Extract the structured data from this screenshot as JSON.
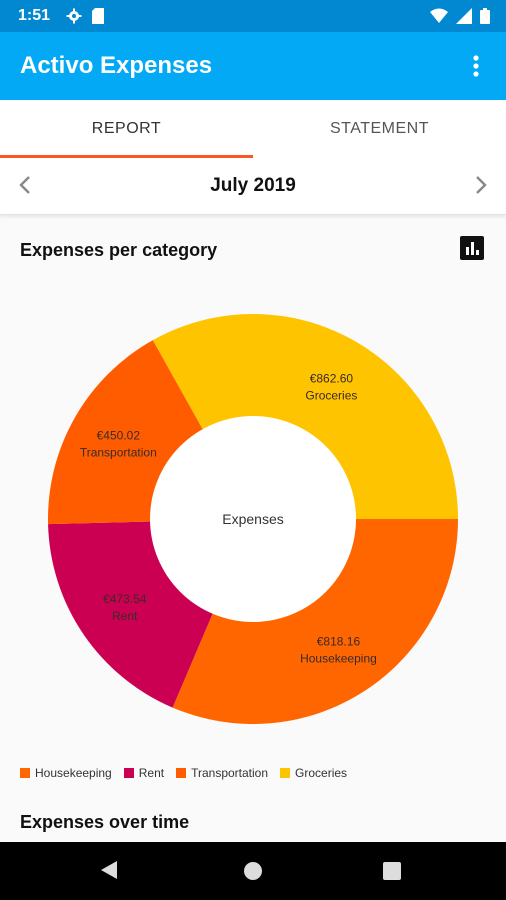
{
  "status_bar": {
    "time": "1:51",
    "icons_left": [
      "settings-icon",
      "sd-card-icon"
    ],
    "icons_right": [
      "wifi-icon",
      "signal-icon",
      "battery-icon"
    ]
  },
  "app_bar": {
    "title": "Activo Expenses",
    "overflow_icon": "more-vert-icon"
  },
  "tabs": [
    {
      "label": "REPORT",
      "active": true
    },
    {
      "label": "STATEMENT",
      "active": false
    }
  ],
  "month_nav": {
    "label": "July 2019",
    "prev_icon": "chevron-left-icon",
    "next_icon": "chevron-right-icon"
  },
  "sections": {
    "per_category_title": "Expenses per category",
    "over_time_title": "Expenses over time",
    "chart_toggle_icon": "bar-chart-icon"
  },
  "chart_data": {
    "type": "pie",
    "center_label": "Expenses",
    "slices": [
      {
        "label": "Housekeeping",
        "amount": "€818.16",
        "value": 818.16,
        "color": "#ff6600"
      },
      {
        "label": "Rent",
        "amount": "€473.54",
        "value": 473.54,
        "color": "#cc0052"
      },
      {
        "label": "Transportation",
        "amount": "€450.02",
        "value": 450.02,
        "color": "#ff5c00"
      },
      {
        "label": "Groceries",
        "amount": "€862.60",
        "value": 862.6,
        "color": "#ffc400"
      }
    ],
    "legend": [
      "Housekeeping",
      "Rent",
      "Transportation",
      "Groceries"
    ],
    "legend_position": "bottom-left"
  },
  "colors": {
    "status_bar": "#0288d1",
    "app_bar": "#03a9f4",
    "tab_indicator": "#ff5722"
  },
  "system_nav": [
    "back-icon",
    "home-icon",
    "recents-icon"
  ]
}
